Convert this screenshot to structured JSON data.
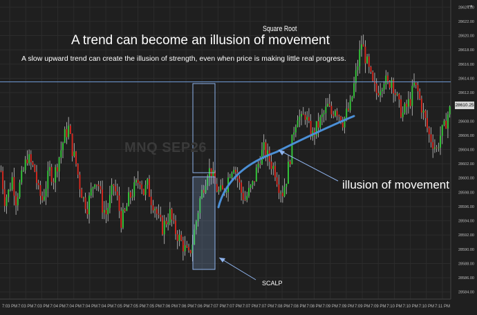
{
  "chart_data": {
    "type": "candlestick",
    "title": "A trend can become an illusion of movement",
    "subtitle": "A slow upward trend can create the illusion of strength, even when price is making little real progress.",
    "watermark": "Square Root",
    "instrument": "MNQ SEP26",
    "y_range": [
      28583,
      28625
    ],
    "y_ticks": [
      "28584.00",
      "28586.00",
      "28588.00",
      "28590.00",
      "28592.00",
      "28594.00",
      "28596.00",
      "28598.00",
      "28600.00",
      "28602.00",
      "28604.00",
      "28606.00",
      "28608.00",
      "28610.00",
      "28612.00",
      "28614.00",
      "28616.00",
      "28618.00",
      "28620.00",
      "28622.00",
      "28624.00"
    ],
    "x_ticks": [
      "7:03 PM",
      "7:03 PM",
      "7:03 PM",
      "7:04 PM",
      "7:04 PM",
      "7:04 PM",
      "7:04 PM",
      "7:05 PM",
      "7:05 PM",
      "7:05 PM",
      "7:06 PM",
      "7:06 PM",
      "7:06 PM",
      "7:07 PM",
      "7:07 PM",
      "7:07 PM",
      "7:07 PM",
      "7:08 PM",
      "7:08 PM",
      "7:08 PM",
      "7:09 PM",
      "7:09 PM",
      "7:09 PM",
      "7:09 PM",
      "7:10 PM",
      "7:10 PM",
      "7:10 PM",
      "7:11 PM"
    ],
    "price_path": [
      28601,
      28597,
      28598,
      28600,
      28597,
      28599,
      28601,
      28603,
      28602,
      28601,
      28598,
      28597,
      28599,
      28601,
      28600,
      28602,
      28604,
      28606,
      28607,
      28604,
      28602,
      28599,
      28597,
      28596,
      28598,
      28600,
      28599,
      28596,
      28595,
      28597,
      28599,
      28597,
      28594,
      28595,
      28597,
      28598,
      28599,
      28600,
      28598,
      28599,
      28597,
      28596,
      28594,
      28593,
      28594,
      28595,
      28593,
      28592,
      28591,
      28590,
      28589,
      28591,
      28594,
      28597,
      28599,
      28601,
      28601,
      28599,
      28598,
      28598,
      28599,
      28601,
      28602,
      28600,
      28598,
      28597,
      28598,
      28599,
      28601,
      28603,
      28604,
      28603,
      28602,
      28601,
      28599,
      28598,
      28600,
      28603,
      28607,
      28609,
      28608,
      28609,
      28607,
      28606,
      28607,
      28608,
      28609,
      28610,
      28609,
      28610,
      28609,
      28608,
      28609,
      28610,
      28613,
      28616,
      28619,
      28617,
      28615,
      28613,
      28612,
      28613,
      28614,
      28613,
      28614,
      28612,
      28610,
      28609,
      28610,
      28611,
      28613,
      28612,
      28610,
      28608,
      28606,
      28605,
      28604,
      28606,
      28607,
      28609,
      28610
    ],
    "current_price": "28610.25",
    "horizontal_line": 28613.5,
    "annotations": {
      "illusion": "illusion of movement",
      "scalp": "SCALP"
    },
    "colors": {
      "background": "#1f1f1f",
      "up": "#34c93a",
      "down": "#d8281f",
      "wick": "#c9c9c9",
      "grid": "#2c2c2c",
      "hline": "#6f9ad6",
      "curve": "#4b8fd6",
      "box": "#8fb4ee"
    }
  },
  "ui": {
    "expand_icon": "arrow-right-icon",
    "expand_glyph": "→"
  }
}
